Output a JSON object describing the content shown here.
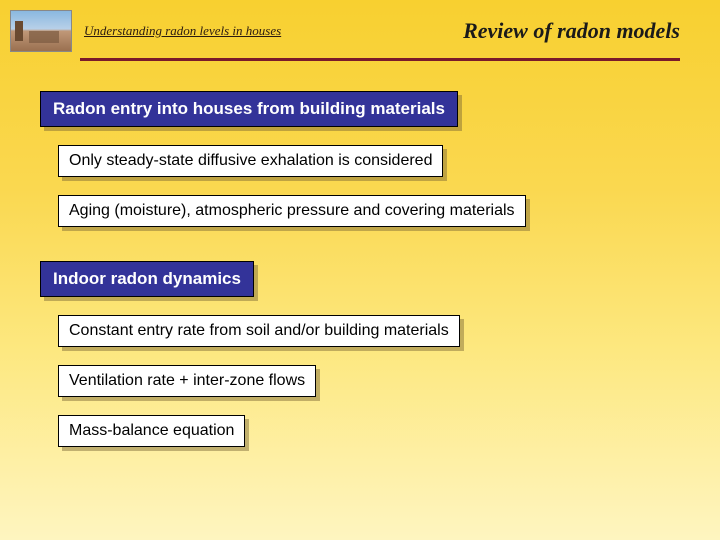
{
  "header": {
    "left": "Understanding radon levels in houses",
    "right": "Review of radon models"
  },
  "sections": {
    "s1": {
      "title": "Radon entry into houses from building materials",
      "items": {
        "a": "Only steady-state diffusive exhalation is considered",
        "b": "Aging (moisture), atmospheric pressure and covering materials"
      }
    },
    "s2": {
      "title": "Indoor radon dynamics",
      "items": {
        "a": "Constant entry rate from soil and/or building materials",
        "b": "Ventilation rate + inter-zone flows",
        "c": "Mass-balance equation"
      }
    }
  },
  "colors": {
    "heading_bg": "#333399",
    "rule": "#7a1a2a"
  }
}
